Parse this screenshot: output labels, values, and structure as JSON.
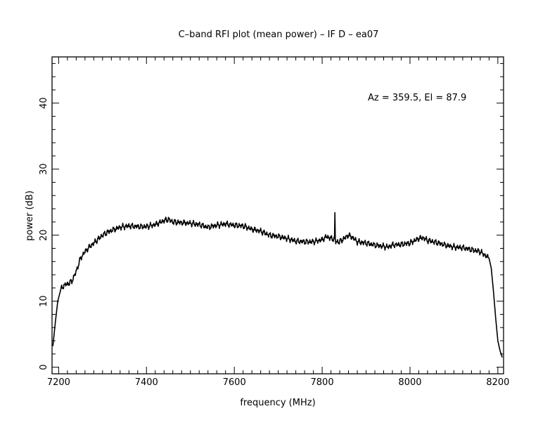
{
  "chart_data": {
    "type": "line",
    "title": "C–band RFI plot (mean power) – IF D – ea07",
    "xlabel": "frequency (MHz)",
    "ylabel": "power (dB)",
    "annotation": "Az = 359.5, El = 87.9",
    "xlim": [
      7185,
      8213
    ],
    "ylim": [
      -1,
      47
    ],
    "x_ticks": [
      7200,
      7400,
      7600,
      7800,
      8000,
      8200
    ],
    "y_ticks": [
      0,
      10,
      20,
      30,
      40
    ],
    "grid": false,
    "line_color": "#000000",
    "series": [
      {
        "x": [
          7187,
          7192,
          7198,
          7205,
          7212,
          7220,
          7230,
          7240,
          7250,
          7260,
          7270,
          7280,
          7290,
          7300,
          7310,
          7320,
          7340,
          7360,
          7380,
          7400,
          7420,
          7440,
          7450,
          7460,
          7480,
          7500,
          7520,
          7540,
          7560,
          7580,
          7600,
          7620,
          7640,
          7660,
          7680,
          7700,
          7720,
          7740,
          7760,
          7780,
          7800,
          7810,
          7820,
          7828,
          7829,
          7830,
          7831,
          7840,
          7850,
          7860,
          7870,
          7880,
          7900,
          7920,
          7940,
          7950,
          7960,
          7980,
          8000,
          8020,
          8030,
          8040,
          8060,
          8080,
          8100,
          8120,
          8140,
          8160,
          8170,
          8180,
          8185,
          8190,
          8195,
          8200,
          8205,
          8210
        ],
        "y": [
          3.2,
          6.5,
          10.0,
          11.8,
          12.4,
          12.6,
          13.0,
          14.5,
          16.5,
          17.5,
          18.2,
          18.8,
          19.4,
          20.0,
          20.4,
          20.7,
          21.2,
          21.4,
          21.3,
          21.3,
          21.6,
          22.2,
          22.4,
          22.0,
          21.9,
          21.8,
          21.6,
          21.2,
          21.5,
          21.7,
          21.5,
          21.4,
          20.9,
          20.6,
          20.0,
          19.8,
          19.5,
          19.1,
          19.0,
          19.0,
          19.3,
          19.8,
          19.5,
          19.4,
          23.2,
          19.2,
          19.0,
          19.0,
          19.5,
          20.0,
          19.6,
          19.0,
          18.8,
          18.5,
          18.3,
          18.2,
          18.5,
          18.6,
          18.8,
          19.5,
          19.6,
          19.2,
          18.9,
          18.5,
          18.2,
          18.1,
          17.8,
          17.5,
          17.0,
          16.5,
          15.0,
          11.5,
          7.5,
          4.0,
          2.5,
          1.5
        ]
      }
    ]
  }
}
